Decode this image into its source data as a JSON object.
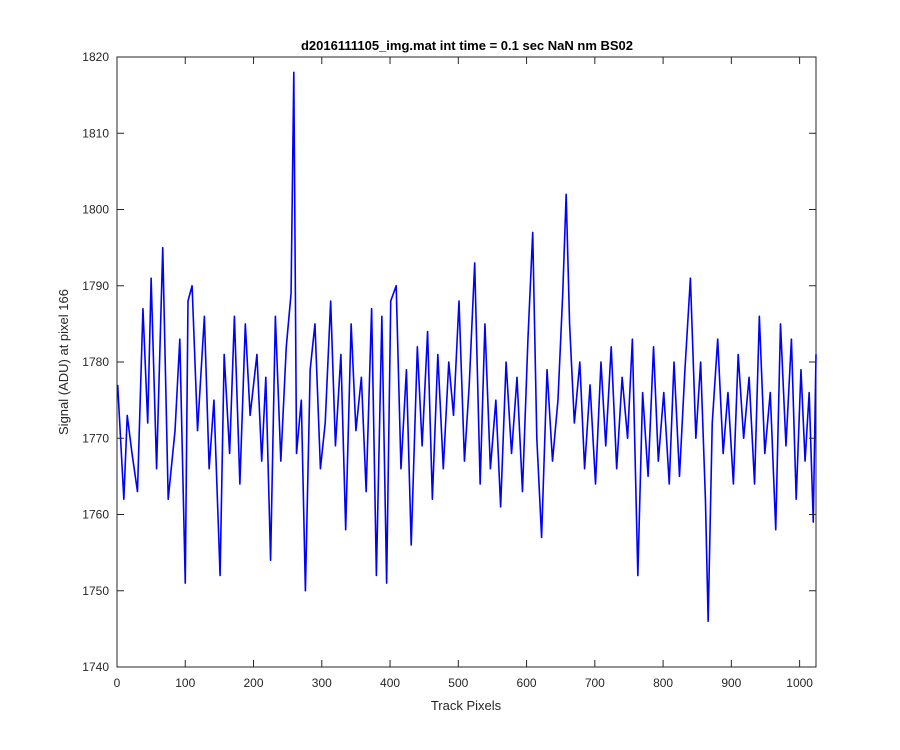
{
  "chart_data": {
    "type": "line",
    "title": "d2016111105_img.mat int time = 0.1 sec  NaN nm BS02",
    "xlabel": "Track Pixels",
    "ylabel": "Signal (ADU) at pixel 166",
    "xlim": [
      0,
      1024
    ],
    "ylim": [
      1740,
      1820
    ],
    "xticks": [
      0,
      100,
      200,
      300,
      400,
      500,
      600,
      700,
      800,
      900,
      1000
    ],
    "yticks": [
      1740,
      1750,
      1760,
      1770,
      1780,
      1790,
      1800,
      1810,
      1820
    ],
    "grid": false,
    "line_color": "#0000ff",
    "series": [
      {
        "points": [
          [
            1,
            1777
          ],
          [
            10,
            1762
          ],
          [
            15,
            1773
          ],
          [
            22,
            1768
          ],
          [
            30,
            1763
          ],
          [
            38,
            1787
          ],
          [
            45,
            1772
          ],
          [
            50,
            1791
          ],
          [
            58,
            1766
          ],
          [
            67,
            1795
          ],
          [
            75,
            1762
          ],
          [
            85,
            1771
          ],
          [
            92,
            1783
          ],
          [
            100,
            1751
          ],
          [
            104,
            1788
          ],
          [
            110,
            1790
          ],
          [
            118,
            1771
          ],
          [
            128,
            1786
          ],
          [
            135,
            1766
          ],
          [
            142,
            1775
          ],
          [
            151,
            1752
          ],
          [
            157,
            1781
          ],
          [
            165,
            1768
          ],
          [
            172,
            1786
          ],
          [
            180,
            1764
          ],
          [
            188,
            1785
          ],
          [
            195,
            1773
          ],
          [
            205,
            1781
          ],
          [
            212,
            1767
          ],
          [
            218,
            1778
          ],
          [
            225,
            1754
          ],
          [
            232,
            1786
          ],
          [
            240,
            1767
          ],
          [
            248,
            1782
          ],
          [
            255,
            1789
          ],
          [
            259,
            1818
          ],
          [
            263,
            1768
          ],
          [
            270,
            1775
          ],
          [
            276,
            1750
          ],
          [
            283,
            1779
          ],
          [
            290,
            1785
          ],
          [
            298,
            1766
          ],
          [
            305,
            1772
          ],
          [
            313,
            1788
          ],
          [
            320,
            1769
          ],
          [
            328,
            1781
          ],
          [
            335,
            1758
          ],
          [
            343,
            1785
          ],
          [
            350,
            1771
          ],
          [
            358,
            1778
          ],
          [
            365,
            1763
          ],
          [
            373,
            1787
          ],
          [
            380,
            1752
          ],
          [
            388,
            1786
          ],
          [
            395,
            1751
          ],
          [
            401,
            1788
          ],
          [
            409,
            1790
          ],
          [
            416,
            1766
          ],
          [
            424,
            1779
          ],
          [
            431,
            1756
          ],
          [
            440,
            1782
          ],
          [
            447,
            1769
          ],
          [
            455,
            1784
          ],
          [
            462,
            1762
          ],
          [
            470,
            1781
          ],
          [
            478,
            1766
          ],
          [
            486,
            1780
          ],
          [
            493,
            1773
          ],
          [
            501,
            1788
          ],
          [
            509,
            1767
          ],
          [
            516,
            1777
          ],
          [
            524,
            1793
          ],
          [
            532,
            1764
          ],
          [
            539,
            1785
          ],
          [
            547,
            1766
          ],
          [
            555,
            1775
          ],
          [
            562,
            1761
          ],
          [
            570,
            1780
          ],
          [
            578,
            1768
          ],
          [
            586,
            1778
          ],
          [
            594,
            1763
          ],
          [
            602,
            1783
          ],
          [
            609,
            1797
          ],
          [
            615,
            1770
          ],
          [
            622,
            1757
          ],
          [
            630,
            1779
          ],
          [
            638,
            1767
          ],
          [
            646,
            1775
          ],
          [
            653,
            1789
          ],
          [
            658,
            1802
          ],
          [
            663,
            1785
          ],
          [
            670,
            1772
          ],
          [
            678,
            1780
          ],
          [
            685,
            1766
          ],
          [
            693,
            1777
          ],
          [
            701,
            1764
          ],
          [
            709,
            1780
          ],
          [
            716,
            1769
          ],
          [
            724,
            1782
          ],
          [
            732,
            1766
          ],
          [
            740,
            1778
          ],
          [
            748,
            1770
          ],
          [
            755,
            1783
          ],
          [
            763,
            1752
          ],
          [
            770,
            1776
          ],
          [
            778,
            1765
          ],
          [
            786,
            1782
          ],
          [
            793,
            1767
          ],
          [
            801,
            1776
          ],
          [
            809,
            1764
          ],
          [
            816,
            1780
          ],
          [
            824,
            1765
          ],
          [
            832,
            1779
          ],
          [
            840,
            1791
          ],
          [
            848,
            1770
          ],
          [
            855,
            1780
          ],
          [
            862,
            1762
          ],
          [
            866,
            1746
          ],
          [
            872,
            1772
          ],
          [
            880,
            1783
          ],
          [
            888,
            1768
          ],
          [
            895,
            1776
          ],
          [
            903,
            1764
          ],
          [
            910,
            1781
          ],
          [
            918,
            1770
          ],
          [
            926,
            1778
          ],
          [
            934,
            1764
          ],
          [
            941,
            1786
          ],
          [
            949,
            1768
          ],
          [
            957,
            1776
          ],
          [
            965,
            1758
          ],
          [
            972,
            1785
          ],
          [
            980,
            1769
          ],
          [
            988,
            1783
          ],
          [
            995,
            1762
          ],
          [
            1002,
            1779
          ],
          [
            1008,
            1767
          ],
          [
            1014,
            1776
          ],
          [
            1020,
            1759
          ],
          [
            1024,
            1781
          ]
        ]
      }
    ]
  }
}
